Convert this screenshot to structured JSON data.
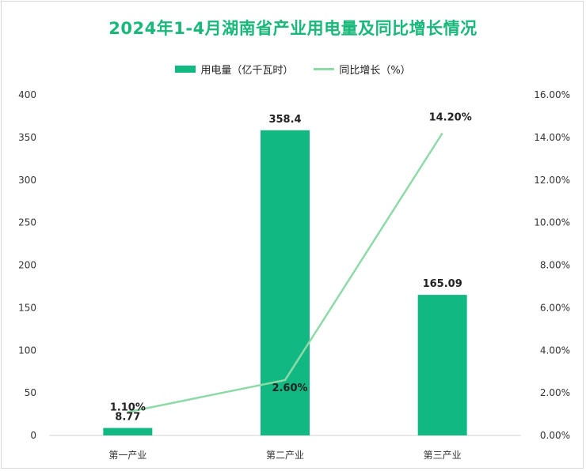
{
  "title": "2024年1-4月湖南省产业用电量及同比增长情况",
  "legend": {
    "bar_label": "用电量（亿千瓦时）",
    "line_label": "同比增长（%）"
  },
  "colors": {
    "bar": "#12b882",
    "line": "#8ed9a8",
    "title": "#18b87a"
  },
  "chart_data": {
    "type": "bar",
    "title": "2024年1-4月湖南省产业用电量及同比增长情况",
    "categories": [
      "第一产业",
      "第二产业",
      "第三产业"
    ],
    "series": [
      {
        "name": "用电量（亿千瓦时）",
        "type": "bar",
        "axis": "left",
        "values": [
          8.77,
          358.4,
          165.09
        ],
        "labels": [
          "8.77",
          "358.4",
          "165.09"
        ]
      },
      {
        "name": "同比增长（%）",
        "type": "line",
        "axis": "right",
        "values": [
          1.1,
          2.6,
          14.2
        ],
        "labels": [
          "1.10%",
          "2.60%",
          "14.20%"
        ]
      }
    ],
    "y_left": {
      "min": 0,
      "max": 400,
      "ticks": [
        "0",
        "50",
        "100",
        "150",
        "200",
        "250",
        "300",
        "350",
        "400"
      ]
    },
    "y_right": {
      "min": 0,
      "max": 16,
      "ticks": [
        "0.00%",
        "2.00%",
        "4.00%",
        "6.00%",
        "8.00%",
        "10.00%",
        "12.00%",
        "14.00%",
        "16.00%"
      ]
    },
    "grid": false,
    "legend_position": "top"
  }
}
